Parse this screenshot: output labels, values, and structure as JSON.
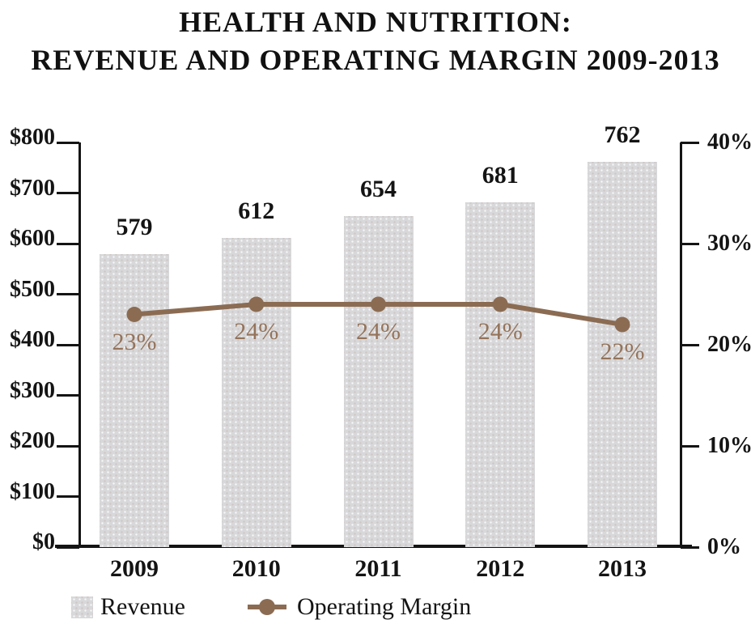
{
  "title": {
    "line1": "HEALTH AND NUTRITION:",
    "line2": "REVENUE AND OPERATING MARGIN 2009-2013"
  },
  "chart_data": {
    "type": "combo",
    "categories": [
      "2009",
      "2010",
      "2011",
      "2012",
      "2013"
    ],
    "series": [
      {
        "name": "Revenue",
        "type": "bar",
        "axis": "left",
        "values": [
          579,
          612,
          654,
          681,
          762
        ],
        "labels": [
          "579",
          "612",
          "654",
          "681",
          "762"
        ],
        "color": "#d8d8da"
      },
      {
        "name": "Operating Margin",
        "type": "line",
        "axis": "right",
        "values": [
          23,
          24,
          24,
          24,
          22
        ],
        "labels": [
          "23%",
          "24%",
          "24%",
          "24%",
          "22%"
        ],
        "color": "#8b6c53"
      }
    ],
    "left_axis": {
      "min": 0,
      "max": 800,
      "tick_labels": [
        "$800",
        "$700",
        "$600",
        "$500",
        "$400",
        "$300",
        "$200",
        "$100",
        "$0"
      ]
    },
    "right_axis": {
      "min": 0,
      "max": 40,
      "tick_labels": [
        "40%",
        "30%",
        "20%",
        "10%",
        "0%"
      ]
    },
    "grid": false,
    "legend_position": "bottom-left",
    "legend": [
      {
        "label": "Revenue",
        "swatch": "bar"
      },
      {
        "label": "Operating Margin",
        "swatch": "line-dot"
      }
    ],
    "colors": {
      "bar_fill": "#d8d8da",
      "line": "#8b6c53",
      "pct_text": "#94735a",
      "axis": "#141414"
    }
  }
}
